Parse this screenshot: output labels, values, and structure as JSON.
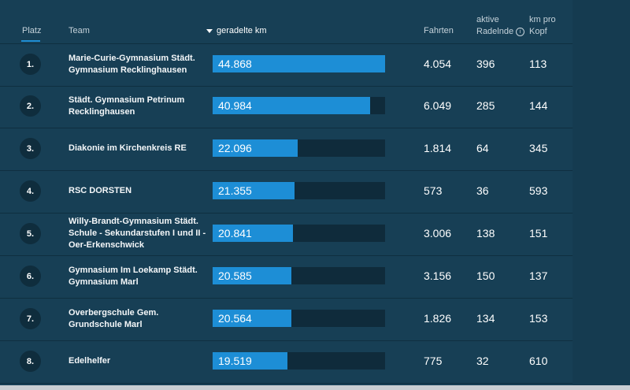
{
  "header": {
    "platz": "Platz",
    "team": "Team",
    "km": "geradelte km",
    "fahrten": "Fahrten",
    "radelnde_line1": "aktive",
    "radelnde_line2": "Radelnde",
    "info": "i",
    "kmpro_line1": "km pro",
    "kmpro_line2": "Kopf"
  },
  "rows": [
    {
      "rank": "1.",
      "team": "Marie-Curie-Gymnasium Städt. Gymnasium Recklinghausen",
      "km": "44.868",
      "km_value": 44868,
      "fahrten": "4.054",
      "radelnde": "396",
      "kmpro": "113"
    },
    {
      "rank": "2.",
      "team": "Städt. Gymnasium Petrinum Recklinghausen",
      "km": "40.984",
      "km_value": 40984,
      "fahrten": "6.049",
      "radelnde": "285",
      "kmpro": "144"
    },
    {
      "rank": "3.",
      "team": "Diakonie im Kirchenkreis RE",
      "km": "22.096",
      "km_value": 22096,
      "fahrten": "1.814",
      "radelnde": "64",
      "kmpro": "345"
    },
    {
      "rank": "4.",
      "team": "RSC DORSTEN",
      "km": "21.355",
      "km_value": 21355,
      "fahrten": "573",
      "radelnde": "36",
      "kmpro": "593"
    },
    {
      "rank": "5.",
      "team": "Willy-Brandt-Gymnasium Städt. Schule - Sekundarstufen I und II - Oer-Erkenschwick",
      "km": "20.841",
      "km_value": 20841,
      "fahrten": "3.006",
      "radelnde": "138",
      "kmpro": "151"
    },
    {
      "rank": "6.",
      "team": "Gymnasium Im Loekamp Städt. Gymnasium Marl",
      "km": "20.585",
      "km_value": 20585,
      "fahrten": "3.156",
      "radelnde": "150",
      "kmpro": "137"
    },
    {
      "rank": "7.",
      "team": "Overbergschule Gem. Grundschule Marl",
      "km": "20.564",
      "km_value": 20564,
      "fahrten": "1.826",
      "radelnde": "134",
      "kmpro": "153"
    },
    {
      "rank": "8.",
      "team": "Edelhelfer",
      "km": "19.519",
      "km_value": 19519,
      "fahrten": "775",
      "radelnde": "32",
      "kmpro": "610"
    }
  ],
  "colors": {
    "bar": "#1d8ed6",
    "track": "#0f2b3b",
    "background": "#173f55"
  }
}
